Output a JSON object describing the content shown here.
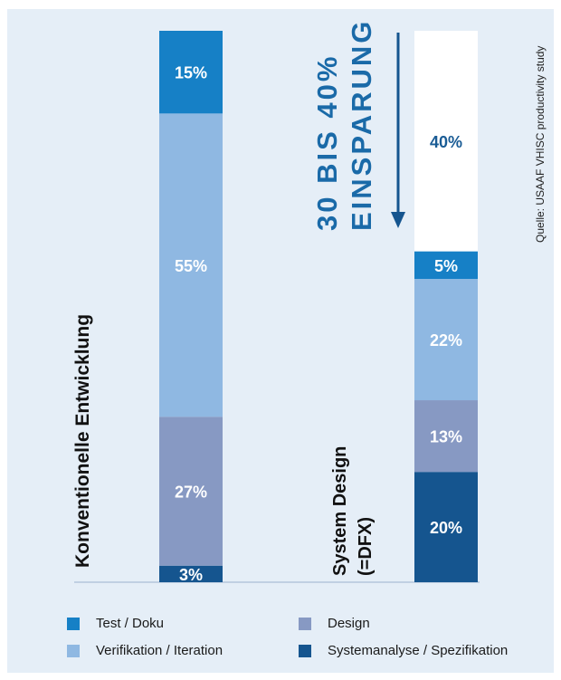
{
  "chart_data": {
    "type": "bar",
    "stacked": true,
    "unit": "%",
    "categories": [
      "Konventionelle Entwicklung",
      "System Design (=DFX)"
    ],
    "series": [
      {
        "name": "Systemanalyse / Spezifikation",
        "values": [
          3,
          20
        ],
        "color": "#15558f",
        "label_color": "#ffffff"
      },
      {
        "name": "Design",
        "values": [
          27,
          13
        ],
        "color": "#8799c3",
        "label_color": "#ffffff"
      },
      {
        "name": "Verifikation / Iteration",
        "values": [
          55,
          22
        ],
        "color": "#8fb8e2",
        "label_color": "#ffffff"
      },
      {
        "name": "Test / Doku",
        "values": [
          15,
          5
        ],
        "color": "#1680c6",
        "label_color": "#ffffff"
      },
      {
        "name": "",
        "values": [
          0,
          40
        ],
        "color": "#ffffff",
        "label_color": "#1a5c95"
      }
    ],
    "ylim": [
      0,
      100
    ],
    "annotation": {
      "line1": "30 BIS 40%",
      "line2": "EINSPARUNG"
    },
    "source": "Quelle: USAAF VHISC productivity study"
  },
  "labels": {
    "left_bar": "Konventionelle Entwicklung",
    "right_bar_line1": "System Design",
    "right_bar_line2": "(=DFX)"
  },
  "legend": [
    {
      "label": "Test / Doku",
      "color": "#1680c6"
    },
    {
      "label": "Design",
      "color": "#8799c3"
    },
    {
      "label": "Verifikation / Iteration",
      "color": "#8fb8e2"
    },
    {
      "label": "Systemanalyse / Spezifikation",
      "color": "#15558f"
    }
  ]
}
